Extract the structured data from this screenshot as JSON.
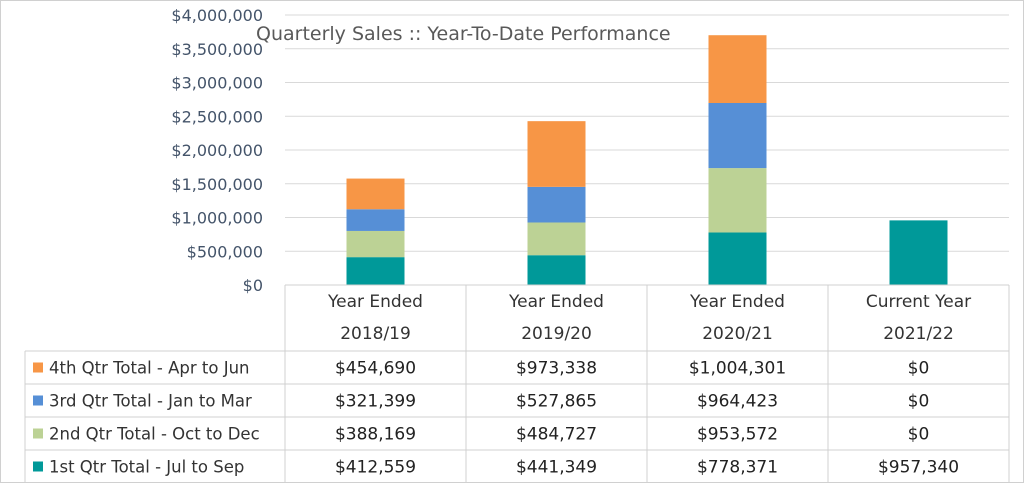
{
  "chart_data": {
    "type": "bar",
    "stacked": true,
    "title": "Quarterly Sales ::  Year-To-Date Performance",
    "categories": [
      [
        "Year Ended",
        "2018/19"
      ],
      [
        "Year Ended",
        "2019/20"
      ],
      [
        "Year Ended",
        "2020/21"
      ],
      [
        "Current Year",
        "2021/22"
      ]
    ],
    "yticks": [
      "$0",
      "$500,000",
      "$1,000,000",
      "$1,500,000",
      "$2,000,000",
      "$2,500,000",
      "$3,000,000",
      "$3,500,000",
      "$4,000,000"
    ],
    "ylim": [
      0,
      4000000
    ],
    "grid": true,
    "legend": "data-table-left",
    "series": [
      {
        "name": "1st Qtr Total - Jul to Sep",
        "color": "#009999",
        "values": [
          412559,
          441349,
          778371,
          957340
        ],
        "labels": [
          "$412,559",
          "$441,349",
          "$778,371",
          "$957,340"
        ]
      },
      {
        "name": "2nd Qtr Total - Oct to Dec",
        "color": "#bcd295",
        "values": [
          388169,
          484727,
          953572,
          0
        ],
        "labels": [
          "$388,169",
          "$484,727",
          "$953,572",
          "$0"
        ]
      },
      {
        "name": "3rd Qtr Total - Jan to Mar",
        "color": "#568fd6",
        "values": [
          321399,
          527865,
          964423,
          0
        ],
        "labels": [
          "$321,399",
          "$527,865",
          "$964,423",
          "$0"
        ]
      },
      {
        "name": "4th Qtr Total - Apr to Jun",
        "color": "#f79646",
        "values": [
          454690,
          973338,
          1004301,
          0
        ],
        "labels": [
          "$454,690",
          "$973,338",
          "$1,004,301",
          "$0"
        ]
      }
    ]
  }
}
